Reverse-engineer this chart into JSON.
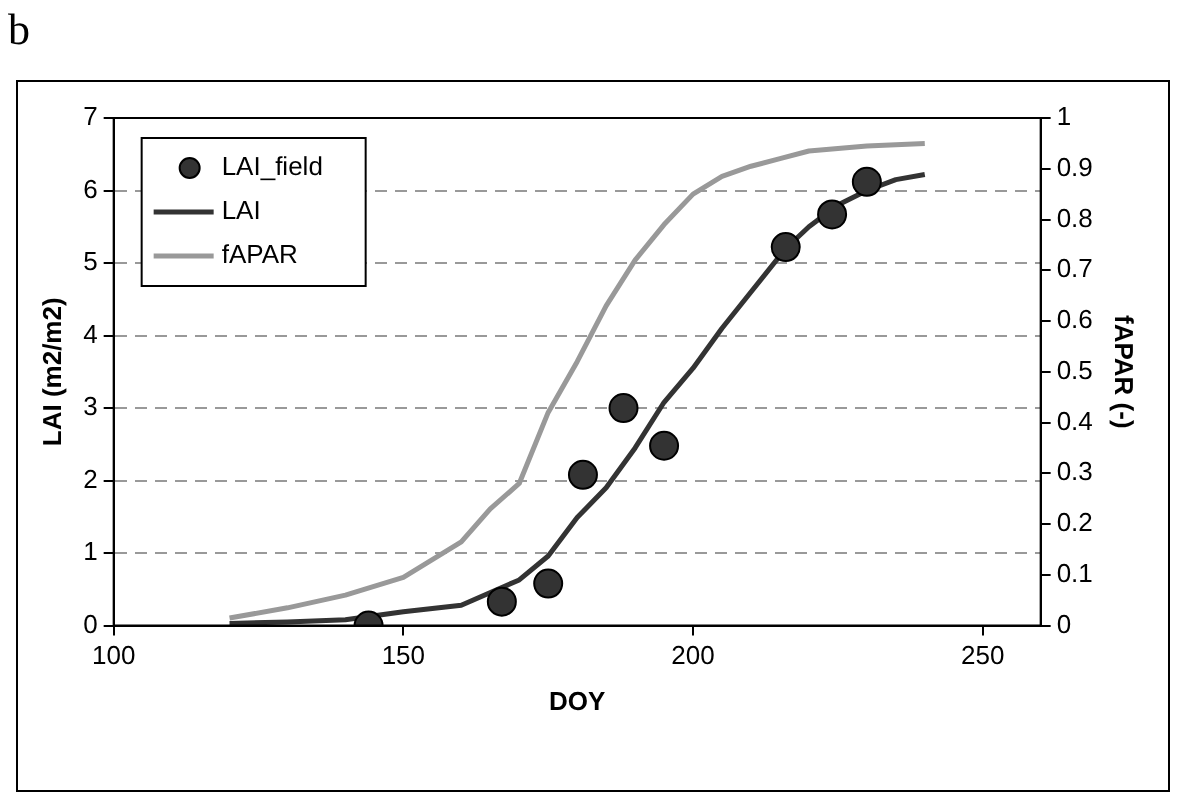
{
  "chart_data": {
    "type": "scatter",
    "annotations": [
      "b"
    ],
    "xlabel": "DOY",
    "ylabel": "LAI (m2/m2)",
    "y2label": "fAPAR (-)",
    "xlim": [
      100,
      260
    ],
    "xticks": [
      100,
      150,
      200,
      250
    ],
    "ylim": [
      0,
      7
    ],
    "yticks": [
      0,
      1,
      2,
      3,
      4,
      5,
      6,
      7
    ],
    "y2lim": [
      0,
      1
    ],
    "y2ticks": [
      0,
      0.1,
      0.2,
      0.3,
      0.4,
      0.5,
      0.6,
      0.7,
      0.8,
      0.9,
      1
    ],
    "grid": "y",
    "legend": "top left",
    "series": [
      {
        "name": "LAI_field",
        "marker": "circle",
        "color": "#333333",
        "x": [
          144,
          167,
          175,
          181,
          188,
          195,
          216,
          224,
          230
        ],
        "values": [
          0.0,
          0.33,
          0.58,
          2.08,
          3.0,
          2.48,
          5.22,
          5.67,
          6.12
        ]
      },
      {
        "name": "LAI",
        "type": "line",
        "marker": "none",
        "color": "#333333",
        "x": [
          120,
          130,
          140,
          150,
          160,
          170,
          175,
          180,
          185,
          190,
          195,
          200,
          205,
          210,
          216,
          220,
          225,
          230,
          235,
          240
        ],
        "values": [
          0.03,
          0.05,
          0.08,
          0.19,
          0.28,
          0.63,
          0.96,
          1.49,
          1.9,
          2.45,
          3.08,
          3.55,
          4.1,
          4.6,
          5.2,
          5.5,
          5.8,
          6.0,
          6.15,
          6.22
        ]
      },
      {
        "name": "fAPAR",
        "type": "line",
        "axis": "y2",
        "marker": "none",
        "color": "#999999",
        "x": [
          120,
          130,
          140,
          150,
          160,
          165,
          170,
          175,
          180,
          185,
          190,
          195,
          200,
          205,
          210,
          215,
          220,
          230,
          240
        ],
        "values": [
          0.015,
          0.035,
          0.06,
          0.095,
          0.165,
          0.23,
          0.28,
          0.42,
          0.52,
          0.63,
          0.72,
          0.79,
          0.85,
          0.885,
          0.905,
          0.92,
          0.935,
          0.945,
          0.95
        ]
      }
    ]
  }
}
